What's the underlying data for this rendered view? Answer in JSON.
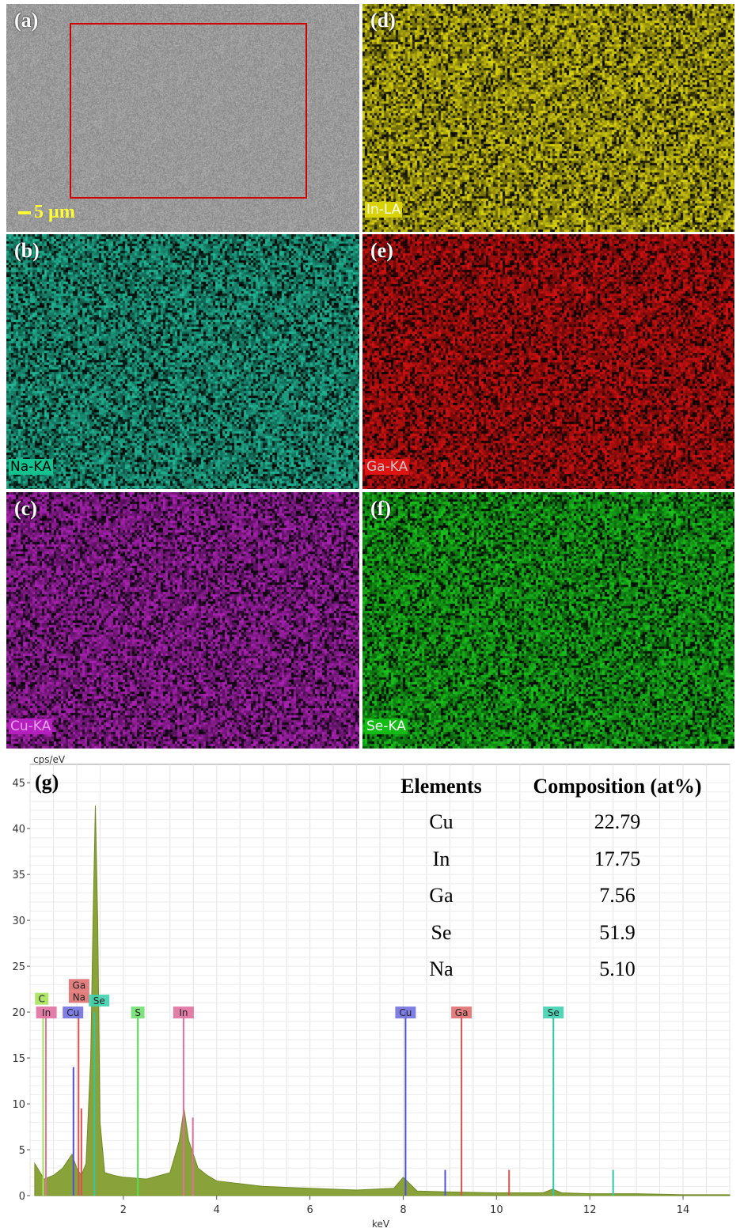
{
  "panels": [
    {
      "id": "a",
      "letter": "(a)",
      "label": "",
      "color": "#9a9a9a"
    },
    {
      "id": "d",
      "letter": "(d)",
      "label": "In-LA",
      "color": "#c9c20e",
      "label_bg": "#d8d200",
      "label_fg": "#ffffff"
    },
    {
      "id": "b",
      "letter": "(b)",
      "label": "Na-KA",
      "color": "#1fa98a",
      "label_bg": "#13c28f",
      "label_fg": "#000000"
    },
    {
      "id": "e",
      "letter": "(e)",
      "label": "Ga-KA",
      "color": "#c21010",
      "label_bg": "#e01313",
      "label_fg": "#c8c8c8"
    },
    {
      "id": "c",
      "letter": "(c)",
      "label": "Cu-KA",
      "color": "#a020a8",
      "label_bg": "#b51fbd",
      "label_fg": "#e8a0f0"
    },
    {
      "id": "f",
      "letter": "(f)",
      "label": "Se-KA",
      "color": "#17b41a",
      "label_bg": "#12bc15",
      "label_fg": "#ffffff"
    }
  ],
  "scale_bar": "5 µm",
  "spectrum": {
    "letter": "(g)",
    "y_unit": "cps/eV",
    "x_unit": "keV",
    "y_ticks": [
      "0",
      "5",
      "10",
      "15",
      "20",
      "25",
      "30",
      "35",
      "40",
      "45"
    ],
    "x_ticks": [
      "2",
      "4",
      "6",
      "8",
      "10",
      "12",
      "14"
    ]
  },
  "table": {
    "col1_header": "Elements",
    "col2_header": "Composition (at%)",
    "rows": [
      {
        "element": "Cu",
        "value": "22.79"
      },
      {
        "element": "In",
        "value": "17.75"
      },
      {
        "element": "Ga",
        "value": "7.56"
      },
      {
        "element": "Se",
        "value": "51.9"
      },
      {
        "element": "Na",
        "value": "5.10"
      }
    ]
  },
  "peak_labels": [
    {
      "text": "C",
      "color": "#a6e35a"
    },
    {
      "text": "In",
      "color": "#e070a0"
    },
    {
      "text": "Cu",
      "color": "#7070e0"
    },
    {
      "text": "Ga",
      "color": "#e07070"
    },
    {
      "text": "Na",
      "color": "#e07070"
    },
    {
      "text": "Se",
      "color": "#40d0b0"
    },
    {
      "text": "S",
      "color": "#70e070"
    },
    {
      "text": "In",
      "color": "#e070a0"
    },
    {
      "text": "Cu",
      "color": "#7070e0"
    },
    {
      "text": "Ga",
      "color": "#e07070"
    },
    {
      "text": "Se",
      "color": "#40d0b0"
    }
  ],
  "chart_data": {
    "type": "area",
    "title": "",
    "xlabel": "keV",
    "ylabel": "cps/eV",
    "xlim": [
      0,
      15
    ],
    "ylim": [
      0,
      47
    ],
    "series": [
      {
        "x": [
          0.1,
          0.3,
          0.5,
          0.7,
          0.9,
          1.0,
          1.1,
          1.2,
          1.3,
          1.35,
          1.4,
          1.45,
          1.5,
          1.6,
          1.8,
          2.0,
          2.5,
          3.0,
          3.2,
          3.3,
          3.4,
          3.5,
          3.6,
          3.8,
          4.0,
          5.0,
          6.0,
          7.0,
          7.8,
          8.0,
          8.1,
          8.3,
          9.0,
          10.0,
          11.0,
          11.2,
          11.4,
          12.0,
          13.0,
          14.0,
          15.0
        ],
        "values": [
          3.5,
          1.8,
          2.2,
          3.0,
          4.5,
          3.0,
          2.2,
          3.5,
          15.0,
          30.0,
          42.5,
          30.0,
          8.0,
          2.5,
          2.2,
          2.0,
          1.8,
          2.5,
          6.0,
          9.5,
          6.0,
          4.5,
          3.0,
          2.2,
          1.6,
          1.0,
          0.8,
          0.6,
          0.8,
          2.0,
          1.5,
          0.5,
          0.4,
          0.3,
          0.3,
          0.7,
          0.3,
          0.2,
          0.2,
          0.1,
          0.1
        ]
      }
    ],
    "lines": [
      {
        "element": "C",
        "x": 0.28,
        "height": 20.0
      },
      {
        "element": "In",
        "x": 0.34,
        "height": 20.0
      },
      {
        "element": "Cu",
        "x": 0.93,
        "height": 14.0
      },
      {
        "element": "Ga",
        "x": 1.1,
        "height": 9.5
      },
      {
        "element": "Na",
        "x": 1.04,
        "height": 20.0
      },
      {
        "element": "Se",
        "x": 1.38,
        "height": 20.0
      },
      {
        "element": "S",
        "x": 2.31,
        "height": 20.0
      },
      {
        "element": "In",
        "x": 3.29,
        "height": 20.0
      },
      {
        "element": "In",
        "x": 3.49,
        "height": 8.5
      },
      {
        "element": "Cu",
        "x": 8.05,
        "height": 20.0
      },
      {
        "element": "Cu",
        "x": 8.9,
        "height": 2.8
      },
      {
        "element": "Ga",
        "x": 9.25,
        "height": 20.0
      },
      {
        "element": "Ga",
        "x": 10.27,
        "height": 2.8
      },
      {
        "element": "Se",
        "x": 11.22,
        "height": 20.0
      },
      {
        "element": "Se",
        "x": 12.5,
        "height": 2.8
      }
    ]
  }
}
